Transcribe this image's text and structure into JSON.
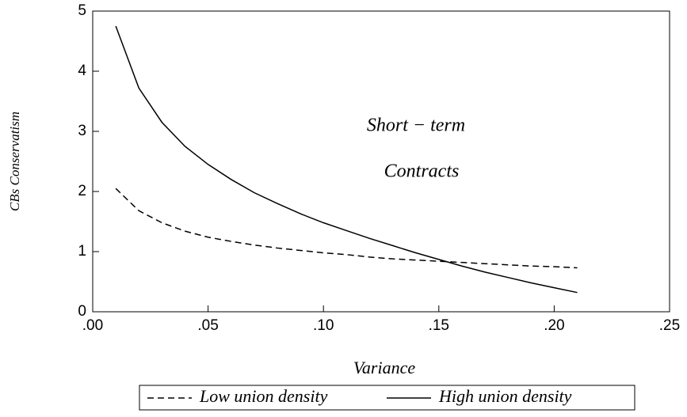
{
  "chart_data": {
    "type": "line",
    "x_label": "Variance",
    "y_label": "CBs Conservatism",
    "annotations": [
      "Short − term",
      "Contracts"
    ],
    "x": [
      0.01,
      0.02,
      0.03,
      0.04,
      0.05,
      0.06,
      0.07,
      0.08,
      0.09,
      0.1,
      0.11,
      0.12,
      0.13,
      0.14,
      0.15,
      0.16,
      0.17,
      0.18,
      0.19,
      0.2,
      0.21
    ],
    "series": [
      {
        "name": "Low union density",
        "color": "#000000",
        "dash": "dashed",
        "values": [
          2.05,
          1.68,
          1.48,
          1.34,
          1.24,
          1.17,
          1.11,
          1.06,
          1.02,
          0.98,
          0.95,
          0.91,
          0.88,
          0.86,
          0.84,
          0.82,
          0.8,
          0.78,
          0.76,
          0.75,
          0.73
        ]
      },
      {
        "name": "High union density",
        "color": "#000000",
        "dash": "solid",
        "values": [
          4.75,
          3.72,
          3.15,
          2.75,
          2.45,
          2.2,
          1.98,
          1.8,
          1.63,
          1.48,
          1.35,
          1.22,
          1.1,
          0.98,
          0.87,
          0.76,
          0.66,
          0.57,
          0.48,
          0.4,
          0.32
        ]
      }
    ],
    "xlim": [
      0,
      0.25
    ],
    "xticks": [
      {
        "value": 0,
        "label": ".00"
      },
      {
        "value": 0.05,
        "label": ".05"
      },
      {
        "value": 0.1,
        "label": ".10"
      },
      {
        "value": 0.15,
        "label": ".15"
      },
      {
        "value": 0.2,
        "label": ".20"
      },
      {
        "value": 0.25,
        "label": ".25"
      }
    ],
    "ylim": [
      0,
      5
    ],
    "yticks": [
      0,
      1,
      2,
      3,
      4,
      5
    ],
    "legend": "bottom"
  }
}
